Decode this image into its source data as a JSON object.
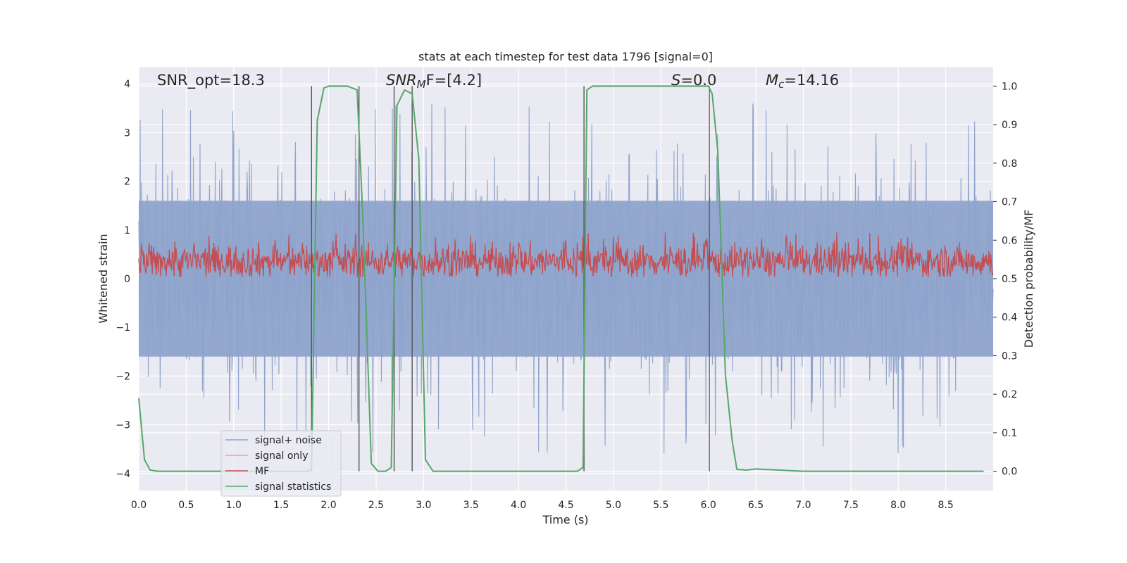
{
  "chart_data": {
    "type": "line",
    "title": "stats at each timestep for test data 1796 [signal=0]",
    "xlabel": "Time (s)",
    "ylabel_left": "Whitened strain",
    "ylabel_right": "Detection probability/MF",
    "xlim": [
      0.0,
      9.0
    ],
    "ylim_left": [
      -4.35,
      4.35
    ],
    "ylim_right": [
      -0.05,
      1.05
    ],
    "grid": true,
    "legend_position": "bottom-left",
    "x_ticks": [
      "0.0",
      "0.5",
      "1.0",
      "1.5",
      "2.0",
      "2.5",
      "3.0",
      "3.5",
      "4.0",
      "4.5",
      "5.0",
      "5.5",
      "6.0",
      "6.5",
      "7.0",
      "7.5",
      "8.0",
      "8.5"
    ],
    "y_left_ticks": [
      "4",
      "3",
      "2",
      "1",
      "0",
      "−1",
      "−2",
      "−3",
      "−4"
    ],
    "y_right_ticks": [
      "1.0",
      "0.9",
      "0.8",
      "0.7",
      "0.6",
      "0.5",
      "0.4",
      "0.3",
      "0.2",
      "0.1",
      "0.0"
    ],
    "annotations": {
      "snr_opt": "SNR_opt=18.3",
      "snr_mf_main": "SNR",
      "snr_mf_sub": "M",
      "snr_mf_rest": "F=[4.2]",
      "s_var": "S",
      "s_val": "=0.0",
      "mc_var": "M",
      "mc_sub": "c",
      "mc_val": "=14.16"
    },
    "series": [
      {
        "name": "signal+ noise",
        "color": "#8fa4cc",
        "description": "noise band between about -3.5 and +3.6"
      },
      {
        "name": "signal only",
        "color": "#e9a68a",
        "values": []
      },
      {
        "name": "MF",
        "color": "#c44e52",
        "description": "around 0.5 to 0.6 on the right axis"
      },
      {
        "name": "signal statistics",
        "color": "#55a868",
        "x": [
          0.0,
          0.06,
          0.12,
          0.2,
          0.5,
          1.0,
          1.5,
          1.78,
          1.82,
          1.88,
          1.95,
          2.0,
          2.2,
          2.3,
          2.36,
          2.45,
          2.52,
          2.6,
          2.66,
          2.72,
          2.8,
          2.88,
          2.95,
          3.02,
          3.1,
          3.5,
          4.0,
          4.5,
          4.62,
          4.68,
          4.72,
          4.78,
          5.0,
          5.5,
          6.0,
          6.04,
          6.1,
          6.18,
          6.25,
          6.3,
          6.4,
          6.5,
          7.0,
          8.0,
          8.9
        ],
        "values": [
          0.19,
          0.03,
          0.003,
          0.0,
          0.0,
          0.0,
          0.0,
          0.0,
          0.005,
          0.91,
          0.995,
          1.0,
          1.0,
          0.99,
          0.66,
          0.02,
          0.0,
          0.0,
          0.01,
          0.95,
          0.99,
          0.98,
          0.81,
          0.03,
          0.0,
          0.0,
          0.0,
          0.0,
          0.0,
          0.01,
          0.99,
          1.0,
          1.0,
          1.0,
          1.0,
          0.98,
          0.83,
          0.25,
          0.08,
          0.005,
          0.003,
          0.006,
          0.0,
          0.0,
          0.0
        ]
      }
    ],
    "vertical_lines_x": [
      1.82,
      2.32,
      2.69,
      2.88,
      4.69,
      6.01
    ],
    "legend": [
      "signal+ noise",
      "signal only",
      "MF",
      "signal statistics"
    ],
    "colors": {
      "plot_bg": "#eaeaf2",
      "grid": "#ffffff",
      "text": "#262626",
      "vline": "#555555"
    }
  }
}
